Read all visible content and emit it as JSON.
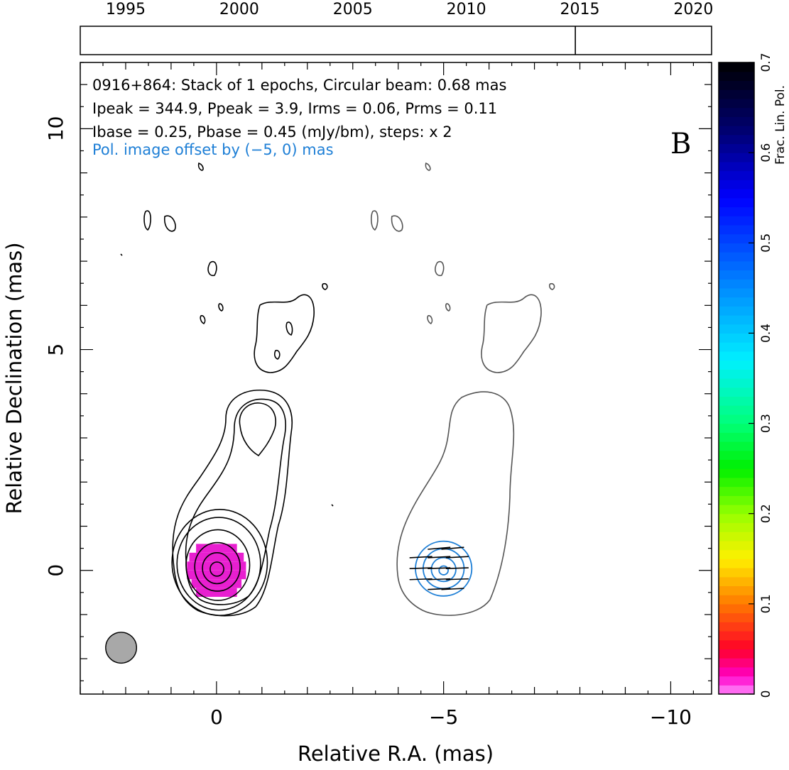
{
  "chart_data": {
    "type": "contour",
    "source": "0916+864",
    "panel_label": "B",
    "annotations": [
      "0916+864: Stack of 1 epochs, Circular beam: 0.68 mas",
      "Ipeak = 344.9, Ppeak = 3.9, Irms = 0.06, Prms = 0.11",
      "Ibase = 0.25, Pbase = 0.45 (mJy/bm), steps: x 2"
    ],
    "offset_note": "Pol. image offset by (−5, 0) mas",
    "offset_note_color": "#1e7fd6",
    "xlabel": "Relative R.A. (mas)",
    "ylabel": "Relative Declination (mas)",
    "xlim": [
      3,
      -10.9
    ],
    "ylim": [
      -2.8,
      11.5
    ],
    "xticks": [
      0,
      -5,
      -10
    ],
    "xtick_labels": [
      "0",
      "−5",
      "−10"
    ],
    "yticks": [
      0,
      5,
      10
    ],
    "ytick_labels": [
      "0",
      "5",
      "10"
    ],
    "timeline": {
      "range": [
        1993,
        2020.8
      ],
      "ticks": [
        1995,
        2000,
        2005,
        2010,
        2015,
        2020
      ],
      "tick_labels": [
        "1995",
        "2000",
        "2005",
        "2010",
        "2015",
        "2020"
      ],
      "epochs": [
        2014.8
      ]
    },
    "colorbar": {
      "label": "Frac. Lin. Pol.",
      "range": [
        0,
        0.7
      ],
      "ticks": [
        0,
        0.1,
        0.2,
        0.3,
        0.4,
        0.5,
        0.6,
        0.7
      ],
      "tick_labels": [
        "0",
        "0.1",
        "0.2",
        "0.3",
        "0.4",
        "0.5",
        "0.6",
        "0.7"
      ]
    },
    "beam": {
      "x": 2.1,
      "y": -1.75,
      "diameter_mas": 0.68
    },
    "pol_offset_mas": [
      -5,
      0
    ],
    "stokes_i_contours": [
      {
        "level": 1,
        "shape": "ellipse",
        "cx": -0.07,
        "cy": 0.18,
        "rx": 1.05,
        "ry": 1.2
      },
      {
        "level": 2,
        "shape": "ellipse",
        "cx": -0.05,
        "cy": 0.15,
        "rx": 0.92,
        "ry": 1.05
      },
      {
        "level": 3,
        "shape": "ellipse",
        "cx": -0.03,
        "cy": 0.12,
        "rx": 0.7,
        "ry": 0.8
      },
      {
        "level": 4,
        "shape": "ellipse",
        "cx": -0.02,
        "cy": 0.08,
        "rx": 0.5,
        "ry": 0.55
      },
      {
        "level": 5,
        "shape": "ellipse",
        "cx": -0.01,
        "cy": 0.05,
        "rx": 0.32,
        "ry": 0.35
      },
      {
        "level": 6,
        "shape": "ellipse",
        "cx": -0.01,
        "cy": 0.03,
        "rx": 0.15,
        "ry": 0.16
      }
    ],
    "pol_contours": [
      {
        "shape": "ellipse",
        "cx": -5,
        "cy": 0.04,
        "rx": 0.62,
        "ry": 0.62
      },
      {
        "shape": "ellipse",
        "cx": -5,
        "cy": 0.04,
        "rx": 0.45,
        "ry": 0.45
      },
      {
        "shape": "ellipse",
        "cx": -5,
        "cy": 0.02,
        "rx": 0.27,
        "ry": 0.27
      },
      {
        "shape": "ellipse",
        "cx": -5,
        "cy": 0.0,
        "rx": 0.1,
        "ry": 0.1
      }
    ],
    "evpa_ticks": [
      {
        "x": -4.9,
        "y": 0.5,
        "angle_deg": 5
      },
      {
        "x": -5.2,
        "y": 0.5,
        "angle_deg": 5
      },
      {
        "x": -4.5,
        "y": 0.3,
        "angle_deg": 3
      },
      {
        "x": -4.9,
        "y": 0.3,
        "angle_deg": 3
      },
      {
        "x": -5.3,
        "y": 0.3,
        "angle_deg": 3
      },
      {
        "x": -4.5,
        "y": 0.05,
        "angle_deg": 2
      },
      {
        "x": -4.9,
        "y": 0.05,
        "angle_deg": 2
      },
      {
        "x": -5.3,
        "y": 0.05,
        "angle_deg": 2
      },
      {
        "x": -4.5,
        "y": -0.2,
        "angle_deg": 2
      },
      {
        "x": -4.9,
        "y": -0.2,
        "angle_deg": 2
      },
      {
        "x": -5.3,
        "y": -0.2,
        "angle_deg": 2
      },
      {
        "x": -4.9,
        "y": -0.42,
        "angle_deg": 3
      },
      {
        "x": -5.2,
        "y": -0.42,
        "angle_deg": 3
      }
    ],
    "frac_pol_pixels": {
      "value": 0.02,
      "color": "#e81fd0",
      "rows": [
        {
          "y": 0.5,
          "x_from": 0.45,
          "x_to": -0.45
        },
        {
          "y": 0.3,
          "x_from": 0.6,
          "x_to": -0.6
        },
        {
          "y": 0.1,
          "x_from": 0.65,
          "x_to": -0.65
        },
        {
          "y": -0.1,
          "x_from": 0.65,
          "x_to": -0.65
        },
        {
          "y": -0.3,
          "x_from": 0.55,
          "x_to": -0.55
        },
        {
          "y": -0.5,
          "x_from": 0.45,
          "x_to": -0.45
        }
      ]
    }
  }
}
